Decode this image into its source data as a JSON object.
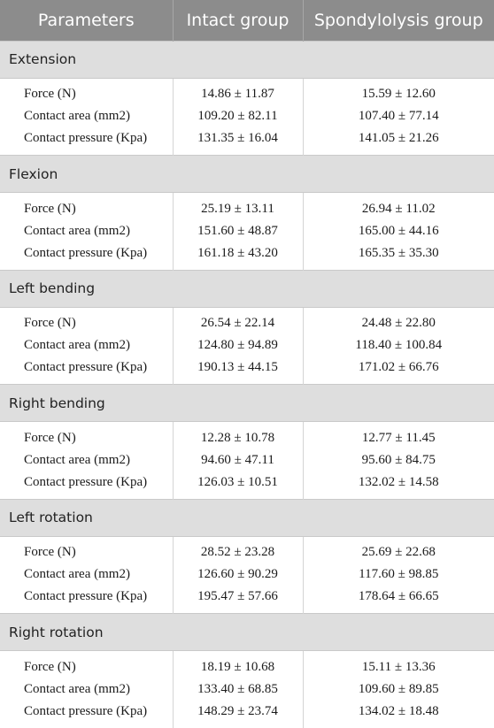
{
  "header": {
    "col1": "Parameters",
    "col2": "Intact group",
    "col3": "Spondylolysis group"
  },
  "groups": [
    {
      "name": "Extension",
      "rows": [
        {
          "param": "Force (N)",
          "intact": "14.86 ± 11.87",
          "spondylolysis": "15.59 ± 12.60"
        },
        {
          "param": "Contact area (mm2)",
          "intact": "109.20 ± 82.11",
          "spondylolysis": "107.40 ± 77.14"
        },
        {
          "param": "Contact pressure (Kpa)",
          "intact": "131.35 ± 16.04",
          "spondylolysis": "141.05 ± 21.26"
        }
      ]
    },
    {
      "name": "Flexion",
      "rows": [
        {
          "param": "Force (N)",
          "intact": "25.19 ± 13.11",
          "spondylolysis": "26.94 ± 11.02"
        },
        {
          "param": "Contact area (mm2)",
          "intact": "151.60 ± 48.87",
          "spondylolysis": "165.00 ± 44.16"
        },
        {
          "param": "Contact pressure (Kpa)",
          "intact": "161.18 ± 43.20",
          "spondylolysis": "165.35 ± 35.30"
        }
      ]
    },
    {
      "name": "Left bending",
      "rows": [
        {
          "param": "Force (N)",
          "intact": "26.54 ± 22.14",
          "spondylolysis": "24.48 ± 22.80"
        },
        {
          "param": "Contact area (mm2)",
          "intact": "124.80 ± 94.89",
          "spondylolysis": "118.40 ± 100.84"
        },
        {
          "param": "Contact pressure (Kpa)",
          "intact": "190.13 ± 44.15",
          "spondylolysis": "171.02 ± 66.76"
        }
      ]
    },
    {
      "name": "Right bending",
      "rows": [
        {
          "param": "Force (N)",
          "intact": "12.28 ± 10.78",
          "spondylolysis": "12.77 ± 11.45"
        },
        {
          "param": "Contact area (mm2)",
          "intact": "94.60 ± 47.11",
          "spondylolysis": "95.60 ± 84.75"
        },
        {
          "param": "Contact pressure (Kpa)",
          "intact": "126.03 ± 10.51",
          "spondylolysis": "132.02 ± 14.58"
        }
      ]
    },
    {
      "name": "Left rotation",
      "rows": [
        {
          "param": "Force (N)",
          "intact": "28.52 ± 23.28",
          "spondylolysis": "25.69 ± 22.68"
        },
        {
          "param": "Contact area (mm2)",
          "intact": "126.60 ± 90.29",
          "spondylolysis": "117.60 ± 98.85"
        },
        {
          "param": "Contact pressure (Kpa)",
          "intact": "195.47 ± 57.66",
          "spondylolysis": "178.64 ± 66.65"
        }
      ]
    },
    {
      "name": "Right rotation",
      "rows": [
        {
          "param": "Force (N)",
          "intact": "18.19 ± 10.68",
          "spondylolysis": "15.11 ± 13.36"
        },
        {
          "param": "Contact area (mm2)",
          "intact": "133.40 ± 68.85",
          "spondylolysis": "109.60 ± 89.85"
        },
        {
          "param": "Contact pressure (Kpa)",
          "intact": "148.29 ± 23.74",
          "spondylolysis": "134.02 ± 18.48"
        }
      ]
    }
  ],
  "colors": {
    "header_bg": "#8c8c8c",
    "group_bg": "#dedede"
  }
}
